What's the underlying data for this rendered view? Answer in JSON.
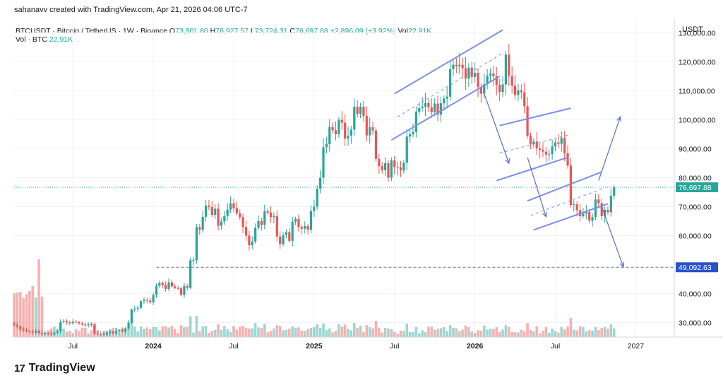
{
  "header": {
    "creator_text": "sahanavv created with TradingView.com, Apr 21, 2026 04:06 UTC-7",
    "symbol": "BTCUSDT · Bitcoin / TetherUS · 1W · Binance",
    "open_label": "O",
    "open": "73,801.80",
    "high_label": "H",
    "high": "76,927.57",
    "low_label": "L",
    "low": "73,724.31",
    "close_label": "C",
    "close": "76,697.88",
    "change": "+2,896.09 (+3.92%)",
    "vol_label": "Vol",
    "vol": "22.91K",
    "vol_line_label": "Vol · BTC",
    "vol_line_value": "22.91K",
    "currency": "USDT"
  },
  "brand": {
    "name": "TradingView",
    "mark": "17"
  },
  "colors": {
    "up": "#26a69a",
    "down": "#ef5350",
    "channel": "#7b8fe8",
    "arrow": "#5a6fc4",
    "level_badge": "#2952cc",
    "price_badge": "#26a69a"
  },
  "chart_data": {
    "type": "candlestick",
    "ylim": [
      25000,
      135000
    ],
    "y_ticks": [
      {
        "value": 130000,
        "label": "130,000.00"
      },
      {
        "value": 120000,
        "label": "120,000.00"
      },
      {
        "value": 110000,
        "label": "110,000.00"
      },
      {
        "value": 100000,
        "label": "100,000.00"
      },
      {
        "value": 90000,
        "label": "90,000.00"
      },
      {
        "value": 80000,
        "label": "80,000.00"
      },
      {
        "value": 70000,
        "label": "70,000.00"
      },
      {
        "value": 60000,
        "label": "60,000.00"
      },
      {
        "value": 40000,
        "label": "40,000.00"
      },
      {
        "value": 30000,
        "label": "30,000.00"
      }
    ],
    "x_ticks": [
      {
        "week": 19,
        "label": "Jul",
        "bold": false
      },
      {
        "week": 45,
        "label": "2024",
        "bold": true
      },
      {
        "week": 71,
        "label": "Jul",
        "bold": false
      },
      {
        "week": 97,
        "label": "2025",
        "bold": true
      },
      {
        "week": 123,
        "label": "Jul",
        "bold": false
      },
      {
        "week": 149,
        "label": "2026",
        "bold": true
      },
      {
        "week": 175,
        "label": "Jul",
        "bold": false
      },
      {
        "week": 201,
        "label": "2027",
        "bold": false
      }
    ],
    "current_price": {
      "value": 76697.88,
      "label": "76,697.88"
    },
    "horizontal_level": {
      "value": 49092.63,
      "label": "49,092.63"
    },
    "closes": [
      29200,
      28600,
      27800,
      27400,
      27000,
      26800,
      26600,
      27200,
      26400,
      26000,
      26300,
      26100,
      25900,
      26500,
      27000,
      30200,
      30500,
      30100,
      29800,
      30300,
      30200,
      29700,
      29300,
      29100,
      29400,
      29200,
      26200,
      26000,
      26100,
      25800,
      26400,
      26900,
      26300,
      27000,
      27500,
      27000,
      28000,
      30000,
      34500,
      34800,
      35100,
      37400,
      37800,
      37600,
      37000,
      39600,
      42700,
      43700,
      43000,
      41600,
      43900,
      42500,
      41900,
      41800,
      39600,
      42600,
      42000,
      51500,
      51600,
      63000,
      62000,
      66500,
      70400,
      69900,
      67200,
      69300,
      63400,
      64900,
      66800,
      69000,
      71200,
      69500,
      67700,
      66400,
      63000,
      60000,
      56700,
      58000,
      62700,
      65000,
      63700,
      68400,
      68000,
      66400,
      66800,
      59700,
      57100,
      60200,
      61200,
      58200,
      64800,
      65800,
      63000,
      62400,
      63300,
      62000,
      68500,
      70000,
      76200,
      80000,
      90500,
      91600,
      97500,
      96400,
      95000,
      100000,
      99000,
      93500,
      94500,
      96600,
      104500,
      102000,
      104500,
      101300,
      94600,
      97400,
      96300,
      86500,
      84000,
      82600,
      85000,
      80000,
      86000,
      83700,
      83500,
      82500,
      85200,
      94200,
      95000,
      95800,
      102800,
      104000,
      104500,
      105800,
      104300,
      102600,
      105600,
      101800,
      105700,
      107300,
      108000,
      117500,
      119000,
      118500,
      119000,
      117800,
      114200,
      118000,
      114800,
      116200,
      111300,
      109000,
      112300,
      115200,
      116000,
      115000,
      112100,
      109600,
      112200,
      122500,
      115100,
      111800,
      108500,
      110200,
      109500,
      104700,
      94500,
      91600,
      92500,
      90100,
      89600,
      89000,
      88000,
      88200,
      90800,
      92200,
      91700,
      93700,
      88500,
      84200,
      70600,
      70800,
      68800,
      66700,
      67600,
      68200,
      65200,
      66400,
      72500,
      71200,
      66700,
      68900,
      68100,
      73800,
      76698
    ],
    "channels": [
      [
        [
          123,
          109000
        ],
        [
          158,
          131000
        ]
      ],
      [
        [
          122,
          93000
        ],
        [
          157,
          115000
        ]
      ],
      [
        [
          157,
          98000
        ],
        [
          180,
          104000
        ]
      ],
      [
        [
          156,
          79000
        ],
        [
          179,
          87000
        ]
      ],
      [
        [
          166,
          72000
        ],
        [
          190,
          82000
        ]
      ],
      [
        [
          168,
          62000
        ],
        [
          192,
          71000
        ]
      ]
    ],
    "channel_midlines": [
      [
        [
          124,
          101000
        ],
        [
          158,
          123000
        ]
      ],
      [
        [
          157,
          88500
        ],
        [
          180,
          95000
        ]
      ],
      [
        [
          167,
          67000
        ],
        [
          191,
          76500
        ]
      ]
    ],
    "arrows": [
      [
        [
          152,
          109000
        ],
        [
          160,
          85000
        ]
      ],
      [
        [
          166,
          87000
        ],
        [
          172,
          66500
        ]
      ],
      [
        [
          189,
          79000
        ],
        [
          196,
          101000
        ]
      ],
      [
        [
          190,
          70000
        ],
        [
          197,
          49200
        ]
      ]
    ]
  }
}
